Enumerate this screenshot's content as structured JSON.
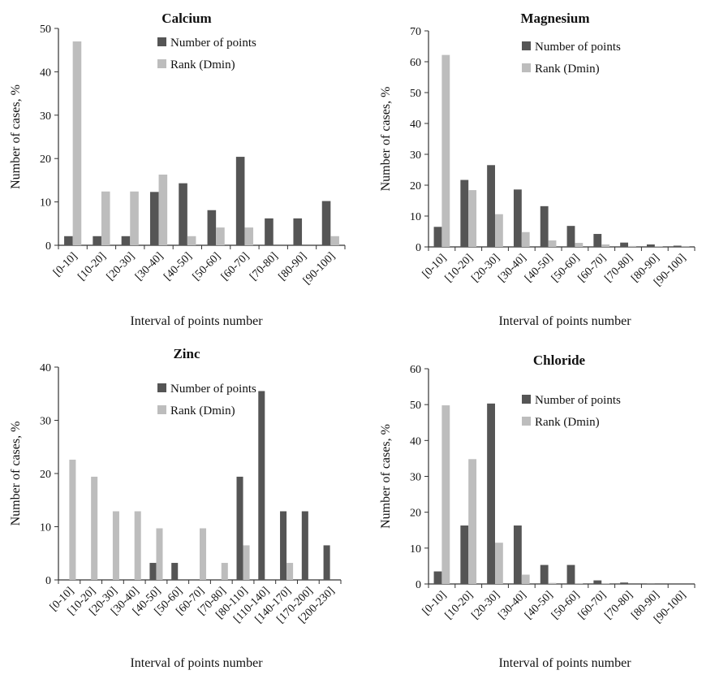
{
  "chart_data": [
    {
      "type": "bar",
      "title": "Calcium",
      "xlabel": "Interval of points number",
      "ylabel": "Number of cases, %",
      "ylim": [
        0,
        50
      ],
      "yticks": [
        0,
        10,
        20,
        30,
        40,
        50
      ],
      "categories": [
        "[0-10]",
        "[10-20]",
        "[20-30]",
        "[30-40]",
        "[40-50]",
        "[50-60]",
        "[60-70]",
        "[70-80]",
        "[80-90]",
        "[90-100]"
      ],
      "series": [
        {
          "name": "Number of points",
          "color": "#555555",
          "values": [
            2.1,
            2.1,
            2.1,
            12.3,
            14.3,
            8.1,
            20.4,
            6.2,
            6.2,
            10.2
          ]
        },
        {
          "name": "Rank (Dmin)",
          "color": "#bdbdbd",
          "values": [
            47,
            12.4,
            12.4,
            16.3,
            2.1,
            4.1,
            4.1,
            0,
            0,
            2.1
          ]
        }
      ],
      "legend": "top-right",
      "grid": false
    },
    {
      "type": "bar",
      "title": "Magnesium",
      "xlabel": "Interval of points number",
      "ylabel": "Number of cases, %",
      "ylim": [
        0,
        70
      ],
      "yticks": [
        0,
        10,
        20,
        30,
        40,
        50,
        60,
        70
      ],
      "categories": [
        "[0-10]",
        "[10-20]",
        "[20-30]",
        "[30-40]",
        "[40-50]",
        "[50-60]",
        "[60-70]",
        "[70-80]",
        "[80-90]",
        "[90-100]"
      ],
      "series": [
        {
          "name": "Number of points",
          "color": "#555555",
          "values": [
            6.5,
            21.7,
            26.5,
            18.6,
            13.2,
            6.8,
            4.2,
            1.4,
            0.8,
            0.4
          ]
        },
        {
          "name": "Rank (Dmin)",
          "color": "#bdbdbd",
          "values": [
            62.2,
            18.4,
            10.6,
            4.8,
            2.1,
            1.3,
            0.8,
            0.3,
            0.2,
            0.1
          ]
        }
      ],
      "legend": "top-right",
      "grid": false
    },
    {
      "type": "bar",
      "title": "Zinc",
      "xlabel": "Interval of points number",
      "ylabel": "Number of cases, %",
      "ylim": [
        0,
        40
      ],
      "yticks": [
        0,
        10,
        20,
        30,
        40
      ],
      "categories": [
        "[0-10]",
        "[10-20]",
        "[20-30]",
        "[30-40]",
        "[40-50]",
        "[50-60]",
        "[60-70]",
        "[70-80]",
        "[80-110]",
        "[110-140]",
        "[140-170]",
        "[170-200]",
        "[200-230]"
      ],
      "series": [
        {
          "name": "Number of points",
          "color": "#555555",
          "values": [
            0,
            0,
            0,
            0,
            3.2,
            3.2,
            0,
            0,
            19.4,
            35.5,
            12.9,
            12.9,
            6.5
          ]
        },
        {
          "name": "Rank (Dmin)",
          "color": "#bdbdbd",
          "values": [
            22.6,
            19.4,
            12.9,
            12.9,
            9.7,
            0,
            9.7,
            3.2,
            6.5,
            0,
            3.2,
            0,
            0
          ]
        }
      ],
      "legend": "top-right",
      "grid": false
    },
    {
      "type": "bar",
      "title": "Chloride",
      "xlabel": "Interval of points number",
      "ylabel": "Number of cases, %",
      "ylim": [
        0,
        60
      ],
      "yticks": [
        0,
        10,
        20,
        30,
        40,
        50,
        60
      ],
      "categories": [
        "[0-10]",
        "[10-20]",
        "[20-30]",
        "[30-40]",
        "[40-50]",
        "[50-60]",
        "[60-70]",
        "[70-80]",
        "[80-90]",
        "[90-100]"
      ],
      "series": [
        {
          "name": "Number of points",
          "color": "#555555",
          "values": [
            3.5,
            16.3,
            50.3,
            16.3,
            5.3,
            5.3,
            1,
            0.4,
            0.1,
            0
          ]
        },
        {
          "name": "Rank (Dmin)",
          "color": "#bdbdbd",
          "values": [
            49.8,
            34.8,
            11.5,
            2.6,
            0.3,
            0.2,
            0.1,
            0,
            0,
            0
          ]
        }
      ],
      "legend": "top-right",
      "grid": false
    }
  ]
}
